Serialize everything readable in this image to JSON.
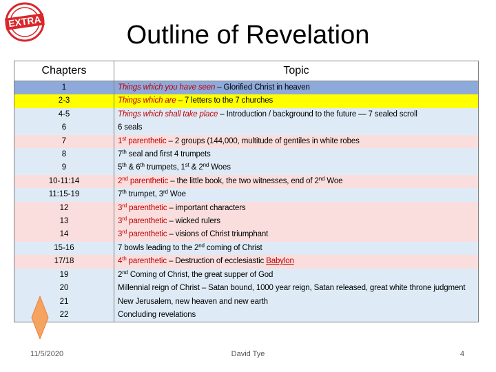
{
  "logo": {
    "text": "EXTRA"
  },
  "header": {
    "title": "Outline of Revelation"
  },
  "table": {
    "columns": [
      "Chapters",
      "Topic"
    ],
    "rows": [
      {
        "chapter": "1",
        "color": "#8eaadb",
        "topic": [
          {
            "t": "Things which you have seen",
            "s": "red italic"
          },
          {
            "t": " – Glorified Christ in heaven",
            "s": ""
          }
        ]
      },
      {
        "chapter": "2-3",
        "color": "#ffff00",
        "topic": [
          {
            "t": "Things which are",
            "s": "red italic"
          },
          {
            "t": " – 7 letters to the 7 churches",
            "s": ""
          }
        ]
      },
      {
        "chapter": "4-5",
        "color": "#deebf7",
        "topic": [
          {
            "t": "Things which shall take place",
            "s": "red italic"
          },
          {
            "t": " – Introduction / background to the future — 7 sealed scroll",
            "s": ""
          }
        ]
      },
      {
        "chapter": "6",
        "color": "#deebf7",
        "topic": [
          {
            "t": "6 seals",
            "s": ""
          }
        ]
      },
      {
        "chapter": "7",
        "color": "#fadede",
        "topic": [
          {
            "t": "1",
            "s": "red"
          },
          {
            "t": "st",
            "s": "red sup"
          },
          {
            "t": " parenthetic",
            "s": "red"
          },
          {
            "t": " – 2 groups (144,000, multitude of gentiles in white robes",
            "s": ""
          }
        ]
      },
      {
        "chapter": "8",
        "color": "#deebf7",
        "topic": [
          {
            "t": "7",
            "s": ""
          },
          {
            "t": "th",
            "s": "sup"
          },
          {
            "t": " seal and first 4 trumpets",
            "s": ""
          }
        ]
      },
      {
        "chapter": "9",
        "color": "#deebf7",
        "topic": [
          {
            "t": "5",
            "s": ""
          },
          {
            "t": "th",
            "s": "sup"
          },
          {
            "t": " & 6",
            "s": ""
          },
          {
            "t": "th",
            "s": "sup"
          },
          {
            "t": " trumpets, 1",
            "s": ""
          },
          {
            "t": "st",
            "s": "sup"
          },
          {
            "t": " & 2",
            "s": ""
          },
          {
            "t": "nd",
            "s": "sup"
          },
          {
            "t": " Woes",
            "s": ""
          }
        ]
      },
      {
        "chapter": "10-11:14",
        "color": "#fadede",
        "topic": [
          {
            "t": "2",
            "s": "red"
          },
          {
            "t": "nd",
            "s": "red sup"
          },
          {
            "t": " parenthetic",
            "s": "red"
          },
          {
            "t": " – the little book, the two witnesses, end of 2",
            "s": ""
          },
          {
            "t": "nd",
            "s": "sup"
          },
          {
            "t": " Woe",
            "s": ""
          }
        ]
      },
      {
        "chapter": "11:15-19",
        "color": "#deebf7",
        "topic": [
          {
            "t": "7",
            "s": ""
          },
          {
            "t": "th",
            "s": "sup"
          },
          {
            "t": " trumpet, 3",
            "s": ""
          },
          {
            "t": "rd",
            "s": "sup"
          },
          {
            "t": " Woe",
            "s": ""
          }
        ]
      },
      {
        "chapter": "12",
        "color": "#fadede",
        "topic": [
          {
            "t": "3",
            "s": "red"
          },
          {
            "t": "rd",
            "s": "red sup"
          },
          {
            "t": " parenthetic",
            "s": "red"
          },
          {
            "t": " – important characters",
            "s": ""
          }
        ]
      },
      {
        "chapter": "13",
        "color": "#fadede",
        "topic": [
          {
            "t": "3",
            "s": "red"
          },
          {
            "t": "rd",
            "s": "red sup"
          },
          {
            "t": " parenthetic",
            "s": "red"
          },
          {
            "t": " – wicked rulers",
            "s": ""
          }
        ]
      },
      {
        "chapter": "14",
        "color": "#fadede",
        "topic": [
          {
            "t": "3",
            "s": "red"
          },
          {
            "t": "rd",
            "s": "red sup"
          },
          {
            "t": " parenthetic",
            "s": "red"
          },
          {
            "t": " – visions of Christ triumphant",
            "s": ""
          }
        ]
      },
      {
        "chapter": "15-16",
        "color": "#deebf7",
        "topic": [
          {
            "t": "7 bowls leading to the 2",
            "s": ""
          },
          {
            "t": "nd",
            "s": "sup"
          },
          {
            "t": " coming of Christ",
            "s": ""
          }
        ]
      },
      {
        "chapter": "17/18",
        "color": "#fadede",
        "topic": [
          {
            "t": "4",
            "s": "red"
          },
          {
            "t": "th",
            "s": "red sup"
          },
          {
            "t": " parenthetic",
            "s": "red"
          },
          {
            "t": " – Destruction of ecclesiastic ",
            "s": ""
          },
          {
            "t": "Babylon",
            "s": "red underline"
          }
        ]
      },
      {
        "chapter": "19",
        "color": "#deebf7",
        "topic": [
          {
            "t": "2",
            "s": ""
          },
          {
            "t": "nd",
            "s": "sup"
          },
          {
            "t": " Coming of Christ, the great supper of God",
            "s": ""
          }
        ]
      },
      {
        "chapter": "20",
        "color": "#deebf7",
        "topic": [
          {
            "t": "Millennial reign of Christ – Satan bound, 1000 year reign, Satan released, great white throne judgment",
            "s": ""
          }
        ]
      },
      {
        "chapter": "21",
        "color": "#deebf7",
        "topic": [
          {
            "t": "New Jerusalem, new heaven and new earth",
            "s": ""
          }
        ]
      },
      {
        "chapter": "22",
        "color": "#deebf7",
        "topic": [
          {
            "t": "Concluding revelations",
            "s": ""
          }
        ]
      }
    ]
  },
  "footer": {
    "date": "11/5/2020",
    "author": "David Tye",
    "page": "4"
  }
}
